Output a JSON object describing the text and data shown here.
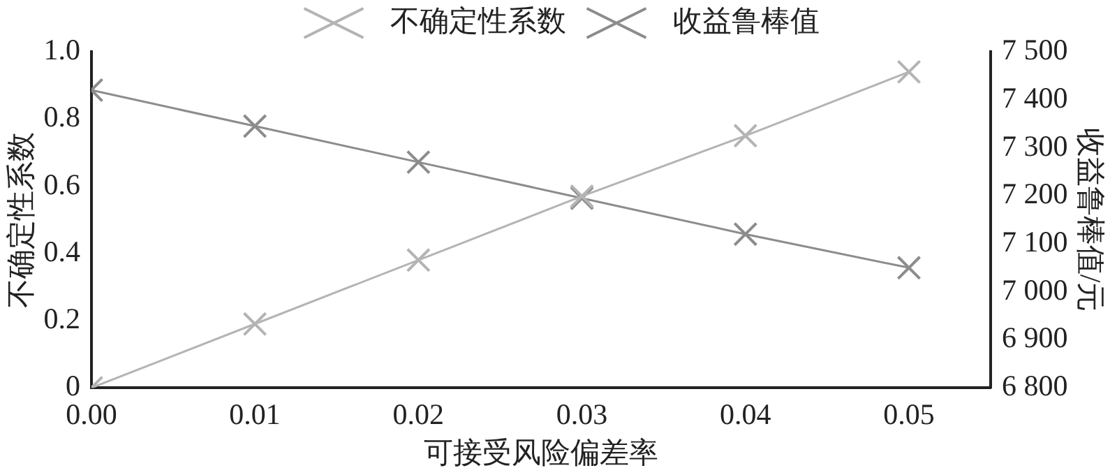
{
  "chart_data": {
    "type": "line",
    "xlabel": "可接受风险偏差率",
    "ylabel": "不确定性系数",
    "y2label": "收益鲁棒值/元",
    "x": [
      0,
      0.01,
      0.02,
      0.03,
      0.04,
      0.05
    ],
    "xlim": [
      0,
      0.055
    ],
    "xticks": [
      {
        "value": 0,
        "label": "0.00"
      },
      {
        "value": 0.01,
        "label": "0.01"
      },
      {
        "value": 0.02,
        "label": "0.02"
      },
      {
        "value": 0.03,
        "label": "0.03"
      },
      {
        "value": 0.04,
        "label": "0.04"
      },
      {
        "value": 0.05,
        "label": "0.05"
      }
    ],
    "ylim": [
      0,
      1
    ],
    "yticks": [
      0,
      0.2,
      0.4,
      0.6,
      0.8,
      {
        "value": 1,
        "label": "1.0"
      }
    ],
    "y2lim": [
      6800,
      7500
    ],
    "y2ticks": [
      {
        "value": 6800,
        "label": "6 800"
      },
      {
        "value": 6900,
        "label": "6 900"
      },
      {
        "value": 7000,
        "label": "7 000"
      },
      {
        "value": 7100,
        "label": "7 100"
      },
      {
        "value": 7200,
        "label": "7 200"
      },
      {
        "value": 7300,
        "label": "7 300"
      },
      {
        "value": 7400,
        "label": "7 400"
      },
      {
        "value": 7500,
        "label": "7 500"
      }
    ],
    "series": [
      {
        "name": "不确定性系数",
        "color": "#b4b4b4",
        "values": [
          0,
          0.19,
          0.38,
          0.57,
          0.75,
          0.94
        ]
      },
      {
        "name": "收益鲁棒值",
        "color": "#8c8c8c",
        "axis": "y2",
        "values": [
          7420,
          7345,
          7270,
          7195,
          7120,
          7050
        ]
      }
    ],
    "marker": "cross",
    "legend": "top",
    "grid": false
  }
}
